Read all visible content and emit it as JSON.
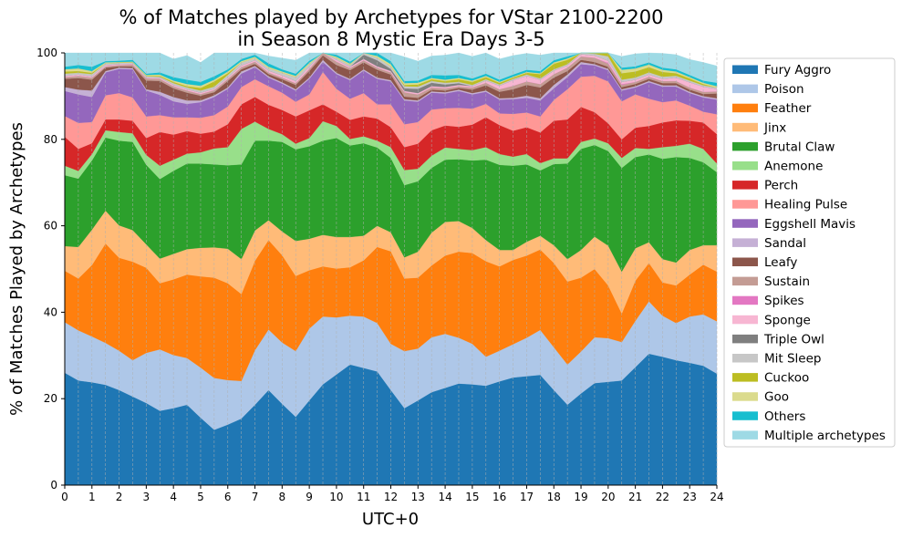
{
  "chart_data": {
    "type": "area",
    "title_line1": "% of Matches played by Archetypes for VStar 2100-2200",
    "title_line2": "in Season 8 Mystic Era Days 3-5",
    "xlabel": "UTC+0",
    "ylabel": "% of Matches Played by Archetypes",
    "xlim": [
      0,
      24
    ],
    "ylim": [
      0,
      100
    ],
    "x_ticks": [
      "0",
      "1",
      "2",
      "3",
      "4",
      "5",
      "6",
      "7",
      "8",
      "9",
      "10",
      "11",
      "12",
      "13",
      "14",
      "15",
      "16",
      "17",
      "18",
      "19",
      "20",
      "21",
      "22",
      "23",
      "24"
    ],
    "y_ticks": [
      "0",
      "20",
      "40",
      "60",
      "80",
      "100"
    ],
    "grid": "vertical-dashed",
    "legend_position": "right",
    "x": [
      0,
      0.5,
      1,
      1.5,
      2,
      2.5,
      3,
      3.5,
      4,
      4.5,
      5,
      5.5,
      6,
      6.5,
      7,
      7.5,
      8,
      8.5,
      9,
      9.5,
      10,
      10.5,
      11,
      11.5,
      12,
      12.5,
      13,
      13.5,
      14,
      14.5,
      15,
      15.5,
      16,
      16.5,
      17,
      17.5,
      18,
      18.5,
      19,
      19.5,
      20,
      20.5,
      21,
      21.5,
      22,
      22.5,
      23,
      23.5,
      24
    ],
    "series": [
      {
        "name": "Fury Aggro",
        "color": "#1f77b4",
        "values": [
          26,
          24.2,
          23.8,
          23.2,
          22,
          20.5,
          19,
          17.2,
          17.8,
          18.6,
          15.6,
          12.8,
          14,
          15.4,
          18.6,
          22,
          18.8,
          15.8,
          19.6,
          23.3,
          25.6,
          27.9,
          27.1,
          26.3,
          22,
          17.8,
          19.6,
          21.5,
          22.5,
          23.5,
          23.3,
          23,
          24,
          24.9,
          25.2,
          25.5,
          22,
          18.6,
          21.2,
          23.6,
          23.9,
          24.2,
          27.3,
          30.4,
          29.7,
          28.9,
          28.3,
          27.6,
          25.8
        ]
      },
      {
        "name": "Poison",
        "color": "#aec7e8",
        "values": [
          11.7,
          11.6,
          10.6,
          9.7,
          9.1,
          8.4,
          11.6,
          14.2,
          12.3,
          10.8,
          11.6,
          12,
          10.3,
          8.7,
          12.6,
          14,
          14.2,
          15.2,
          16.6,
          15.7,
          13.2,
          11.3,
          11.9,
          11.2,
          10.7,
          13.2,
          12,
          12.7,
          12.5,
          10.6,
          9.4,
          6.7,
          7.1,
          7.7,
          8.9,
          10.4,
          9.9,
          9.3,
          9.7,
          10.6,
          10.1,
          8.9,
          10.7,
          12.1,
          9.5,
          8.6,
          10.7,
          11.9,
          12.1
        ]
      },
      {
        "name": "Feather",
        "color": "#ff7f0e",
        "values": [
          11.9,
          12,
          16.5,
          23,
          21.5,
          22.8,
          19.7,
          15.3,
          17.5,
          19.3,
          21.1,
          23.2,
          22.4,
          20.1,
          20.7,
          20.7,
          20.2,
          17.4,
          13.5,
          11.6,
          11.3,
          11.2,
          13,
          17.6,
          21.4,
          16.8,
          16.4,
          16.6,
          18.1,
          19.9,
          21,
          22.1,
          19.5,
          19.5,
          19,
          18.6,
          19.5,
          19.2,
          17.1,
          15.8,
          12.2,
          6.6,
          9.3,
          8.9,
          7.7,
          8.7,
          9.7,
          11.5,
          11.5
        ]
      },
      {
        "name": "Jinx",
        "color": "#ffbb78",
        "values": [
          5.7,
          7.3,
          8.2,
          7.6,
          7.5,
          7.3,
          5.4,
          5.7,
          5.9,
          5.9,
          6.6,
          7,
          8,
          8.1,
          7,
          4.6,
          5.5,
          8.1,
          7.3,
          7.3,
          7.3,
          7,
          5.7,
          4.9,
          4.4,
          4.9,
          6,
          7.6,
          7.8,
          7.1,
          5.8,
          4.9,
          3.8,
          2.3,
          3.2,
          3.2,
          4.1,
          5.2,
          6.4,
          7.5,
          9.2,
          9.7,
          7.5,
          4.8,
          5.4,
          5.3,
          5.7,
          4.5,
          6.1
        ]
      },
      {
        "name": "Brutal Claw",
        "color": "#2ca02c",
        "values": [
          16.4,
          15.8,
          16,
          16.9,
          19.6,
          20.4,
          18.4,
          18.4,
          19.2,
          19.8,
          19.5,
          19.2,
          19.3,
          21.9,
          20.8,
          18.4,
          20.7,
          21.2,
          21.4,
          21.8,
          22.9,
          21.2,
          21.4,
          18.1,
          17.2,
          16.7,
          16.3,
          15,
          14.4,
          14.3,
          15.6,
          18.6,
          19.7,
          19.5,
          17.9,
          15.1,
          18.8,
          22.1,
          23.4,
          21.2,
          21.9,
          24,
          21.1,
          20.3,
          23.2,
          24.4,
          21.3,
          19.2,
          16.9
        ]
      },
      {
        "name": "Anemone",
        "color": "#98df8a",
        "values": [
          2.2,
          1.8,
          1.5,
          1.7,
          2,
          2,
          2.3,
          3.1,
          2.6,
          2.3,
          2.6,
          3.7,
          4.2,
          8.2,
          4.4,
          2.7,
          1.8,
          1.3,
          1.9,
          4.5,
          2.8,
          1.5,
          1.6,
          1.6,
          2.5,
          3.5,
          2.9,
          2.8,
          2.8,
          2.4,
          2.4,
          2.9,
          2.5,
          2.1,
          2.4,
          1.7,
          1.3,
          1.2,
          1.6,
          1.5,
          1.8,
          2.3,
          2.1,
          1.3,
          2.7,
          2.6,
          3.3,
          3.1,
          2
        ]
      },
      {
        "name": "Perch",
        "color": "#d62728",
        "values": [
          6.7,
          5.1,
          2.5,
          2.5,
          2.9,
          2.9,
          3.9,
          7.8,
          5.8,
          5.2,
          4.3,
          3.9,
          5.3,
          5.7,
          5.7,
          5.6,
          5.6,
          6.3,
          6.4,
          3.9,
          3.3,
          4.4,
          4.6,
          5.1,
          4.6,
          5.3,
          5.8,
          5.9,
          5.1,
          5.1,
          5.9,
          6.9,
          6.7,
          6,
          6.2,
          7.1,
          8.7,
          9,
          8.1,
          6.1,
          4.6,
          4.3,
          4.7,
          5.3,
          5.7,
          5.9,
          5.3,
          6.1,
          6.8
        ]
      },
      {
        "name": "Healing Pulse",
        "color": "#ff9896",
        "values": [
          4.8,
          6,
          4.9,
          5.6,
          6.1,
          5.4,
          5,
          3.9,
          4,
          3.2,
          3.7,
          3.8,
          4.1,
          4,
          4.1,
          4.3,
          4,
          3.4,
          3.7,
          7.5,
          5.3,
          4.9,
          5.4,
          3.3,
          5.3,
          5.3,
          5,
          4.8,
          4,
          4.4,
          3.7,
          3.1,
          2.7,
          3.9,
          3.4,
          3.7,
          4.8,
          7,
          7,
          8.4,
          9.7,
          8.8,
          7.7,
          6.3,
          4.7,
          4.6,
          3.5,
          2.5,
          4.6
        ]
      },
      {
        "name": "Eggshell Mavis",
        "color": "#9467bd",
        "values": [
          5.8,
          6.6,
          5.8,
          5.3,
          5.6,
          6.5,
          6,
          4.7,
          3.7,
          3.1,
          3.6,
          4.2,
          4.1,
          3.1,
          2.8,
          2,
          2.1,
          2.6,
          3.6,
          2.3,
          3.4,
          4.3,
          5.2,
          5.9,
          5.3,
          5.5,
          4.7,
          3.9,
          3.4,
          3.9,
          3.3,
          2.8,
          3.2,
          3.4,
          3.4,
          3.7,
          2.7,
          2.8,
          2.9,
          2.4,
          2.6,
          2.5,
          1.6,
          3.8,
          3.6,
          3.2,
          2.9,
          3.3,
          3.4
        ]
      },
      {
        "name": "Sandal",
        "color": "#c5b0d5",
        "values": [
          0.9,
          1.1,
          1.5,
          0.3,
          0.3,
          0.3,
          0.3,
          0.7,
          1,
          0.8,
          0.4,
          0.4,
          0.3,
          0.5,
          0.3,
          0.3,
          0.3,
          0.3,
          0.3,
          0.5,
          0.3,
          0.3,
          0.3,
          0.3,
          0.3,
          0.3,
          0.3,
          0.3,
          0.3,
          0.3,
          0.3,
          0.3,
          0.3,
          0.3,
          0.5,
          0.5,
          0.8,
          0.6,
          0.5,
          0.3,
          0.3,
          0.3,
          0.3,
          0.3,
          0.3,
          0.3,
          0.3,
          0.3,
          0.3
        ]
      },
      {
        "name": "Leafy",
        "color": "#8c564b",
        "values": [
          1.9,
          2.7,
          2.5,
          0.8,
          0.3,
          0.4,
          2,
          2.5,
          2,
          1.8,
          1.1,
          0.7,
          1.5,
          0.5,
          0.5,
          0.5,
          0.7,
          1,
          1.5,
          1,
          1.8,
          2,
          1.6,
          1.8,
          1.3,
          0.6,
          0.6,
          0.4,
          0.4,
          0.4,
          0.8,
          1.2,
          1.5,
          2,
          2.5,
          2.5,
          1.7,
          0.8,
          0.5,
          0.5,
          0.5,
          0.5,
          0.5,
          0.5,
          0.5,
          0.5,
          0.5,
          0.5,
          1.1
        ]
      },
      {
        "name": "Sustain",
        "color": "#c49c94",
        "values": [
          0.4,
          0.5,
          0.5,
          0.3,
          0.3,
          0.4,
          0.5,
          0.5,
          0.5,
          0.5,
          0.4,
          0.5,
          0.5,
          0.5,
          0.5,
          0.4,
          0.4,
          0.4,
          0.5,
          1.2,
          0.8,
          0.5,
          0.5,
          0.5,
          0.5,
          1,
          0.8,
          0.5,
          0.5,
          0.4,
          0.5,
          0.6,
          0.6,
          0.8,
          0.8,
          0.8,
          0.8,
          0.8,
          0.8,
          1,
          0.7,
          0.5,
          0.5,
          0.5,
          0.5,
          0.5,
          0.5,
          0.5,
          0.5
        ]
      },
      {
        "name": "Spikes",
        "color": "#e377c2",
        "values": [
          0,
          0,
          0,
          0,
          0,
          0,
          0,
          0,
          0,
          0,
          0,
          0,
          0,
          0,
          0,
          0,
          0,
          0,
          0,
          0,
          0,
          0,
          0,
          0,
          0,
          0,
          0,
          0,
          0,
          0,
          0,
          0,
          0,
          0,
          0,
          0,
          0,
          0,
          0,
          0,
          0.2,
          0.2,
          0,
          0,
          0,
          0,
          0,
          0,
          0
        ]
      },
      {
        "name": "Sponge",
        "color": "#f7b6d2",
        "values": [
          0.3,
          0.3,
          0.3,
          0.3,
          0.2,
          0.2,
          0.2,
          0.2,
          0.3,
          0.3,
          0.3,
          0.3,
          0.3,
          0.4,
          0.3,
          0.4,
          0.5,
          0.5,
          0.5,
          0.4,
          0.4,
          0.3,
          0.3,
          0.3,
          0.3,
          0.3,
          0.3,
          0.3,
          0.3,
          0.3,
          0.3,
          0.5,
          0.8,
          1.3,
          1.3,
          1,
          0.8,
          0.5,
          0.5,
          0.5,
          0.5,
          0.5,
          0.5,
          0.5,
          0.5,
          0.8,
          1.2,
          1.2,
          0.6
        ]
      },
      {
        "name": "Triple Owl",
        "color": "#7f7f7f",
        "values": [
          0,
          0,
          0,
          0,
          0,
          0,
          0,
          0,
          0,
          0,
          0,
          0,
          0,
          0,
          0,
          0,
          0,
          0,
          0,
          0,
          0,
          0,
          1,
          1.4,
          0.5,
          0.6,
          1,
          0.8,
          0.6,
          0.4,
          0,
          0,
          0,
          0,
          0,
          0,
          0,
          0,
          0,
          0,
          0,
          0,
          0,
          0,
          0,
          0,
          0,
          0,
          0
        ]
      },
      {
        "name": "Mit Sleep",
        "color": "#c7c7c7",
        "values": [
          0.5,
          0.4,
          0.5,
          0.4,
          0.3,
          0.3,
          0.3,
          0.3,
          0.4,
          0.4,
          0.5,
          0.5,
          0.6,
          0.7,
          0.5,
          0.6,
          0.6,
          0.9,
          0.6,
          0.4,
          0.4,
          0.4,
          0.4,
          0.6,
          0.6,
          0.5,
          0.5,
          0.4,
          0.4,
          0.3,
          0.3,
          0.3,
          0.3,
          0.3,
          0.3,
          0.3,
          0.3,
          0.3,
          0.3,
          0.4,
          1,
          0.5,
          0.5,
          0.5,
          0.5,
          0.4,
          0.4,
          0.3,
          0.3
        ]
      },
      {
        "name": "Cuckoo",
        "color": "#bcbd22",
        "values": [
          0.5,
          0.4,
          0.3,
          0,
          0.1,
          0.1,
          0.1,
          0.2,
          0.3,
          0.3,
          0.6,
          1.2,
          0.4,
          0,
          0,
          0,
          0,
          0,
          0,
          0,
          0,
          0,
          0,
          0,
          0,
          0.3,
          0.5,
          0.4,
          0.4,
          0.6,
          0.7,
          0.5,
          0.4,
          0.3,
          0.4,
          1,
          1.3,
          1,
          0.8,
          0.5,
          0.9,
          1.5,
          1.4,
          1.2,
          1.1,
          0.6,
          0.5,
          0.3,
          0
        ]
      },
      {
        "name": "Goo",
        "color": "#dbdb8d",
        "values": [
          0.5,
          0.6,
          0.4,
          0.2,
          0.1,
          0.1,
          0.2,
          0.3,
          0.3,
          0.5,
          0.5,
          0.4,
          0.4,
          0.3,
          0.3,
          0.3,
          0.3,
          0.3,
          0.3,
          0.3,
          0.3,
          0.3,
          0.3,
          0.4,
          0.5,
          0.4,
          0.4,
          0.3,
          0.3,
          0.3,
          0.3,
          0.3,
          0.2,
          0.2,
          0.2,
          0.2,
          0.3,
          0.3,
          0.3,
          0.4,
          0.6,
          0.8,
          0.7,
          0.6,
          0.5,
          0.4,
          0.3,
          0.3,
          0.3
        ]
      },
      {
        "name": "Others",
        "color": "#17becf",
        "values": [
          0.6,
          0.8,
          1,
          0.3,
          0.3,
          0.4,
          0.3,
          0.5,
          0.8,
          1,
          0.9,
          0.8,
          0.5,
          0.5,
          0.5,
          0.8,
          0.5,
          0.5,
          0.5,
          0.5,
          0.5,
          0.5,
          0.8,
          1,
          0.7,
          0.5,
          0.5,
          0.7,
          1,
          0.7,
          0.5,
          0.5,
          0.5,
          0.5,
          0.5,
          0.5,
          0.5,
          0.5,
          0.5,
          0.5,
          0.5,
          0.5,
          0.5,
          0.5,
          0.5,
          0.5,
          0.5,
          0.5,
          0.8
        ]
      },
      {
        "name": "Multiple archetypes",
        "color": "#9edae5",
        "values": [
          3.2,
          2.8,
          3.2,
          4,
          4,
          3.7,
          4.8,
          4.7,
          4.2,
          5.6,
          4.5,
          5.6,
          4.2,
          2.1,
          1.5,
          1.7,
          2.6,
          3.1,
          3,
          2.5,
          2.6,
          2.1,
          1.6,
          1.4,
          3,
          5.6,
          4.5,
          4.4,
          4.7,
          5.1,
          5.1,
          4.8,
          4.8,
          4.4,
          3.8,
          3.7,
          3.2,
          4.3,
          4,
          3.9,
          2.9,
          2.6,
          2.9,
          3.3,
          3.3,
          3.4,
          3.6,
          4.2,
          3.9
        ]
      }
    ]
  }
}
